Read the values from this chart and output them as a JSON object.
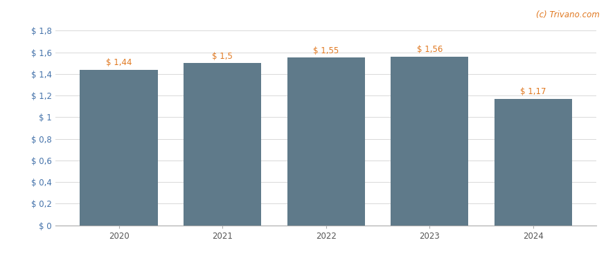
{
  "categories": [
    "2020",
    "2021",
    "2022",
    "2023",
    "2024"
  ],
  "values": [
    1.44,
    1.5,
    1.55,
    1.56,
    1.17
  ],
  "bar_color": "#5f7a8a",
  "bar_labels": [
    "$ 1,44",
    "$ 1,5",
    "$ 1,55",
    "$ 1,56",
    "$ 1,17"
  ],
  "ylim": [
    0,
    1.8
  ],
  "yticks": [
    0,
    0.2,
    0.4,
    0.6,
    0.8,
    1.0,
    1.2,
    1.4,
    1.6,
    1.8
  ],
  "ytick_labels": [
    "$ 0",
    "$ 0,2",
    "$ 0,4",
    "$ 0,6",
    "$ 0,8",
    "$ 1",
    "$ 1,2",
    "$ 1,4",
    "$ 1,6",
    "$ 1,8"
  ],
  "watermark": "(c) Trivano.com",
  "watermark_color": "#e07820",
  "background_color": "#ffffff",
  "grid_color": "#d8d8d8",
  "bar_label_color": "#e07820",
  "ytick_color": "#4472aa",
  "xtick_color": "#555555",
  "bar_label_fontsize": 8.5,
  "axis_label_fontsize": 8.5,
  "bar_width": 0.75
}
